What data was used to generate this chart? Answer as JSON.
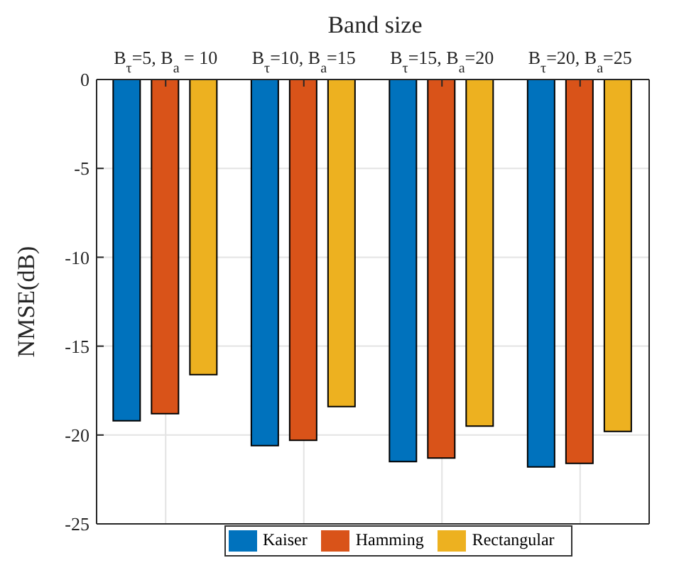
{
  "chart_data": {
    "type": "bar",
    "xlabel": "Band size",
    "ylabel": "NMSE(dB)",
    "categories": [
      "B$_{τ}$=5, B$_{a}$ = 10",
      "B$_{τ}$=10, B$_{a}$=15",
      "B$_{τ}$=15, B$_{a}$=20",
      "B$_{τ}$=20, B$_{a}$=25"
    ],
    "series": [
      {
        "name": "Kaiser",
        "color": "#0072bd",
        "values": [
          -19.2,
          -20.6,
          -21.5,
          -21.8
        ]
      },
      {
        "name": "Hamming",
        "color": "#d95319",
        "values": [
          -18.8,
          -20.3,
          -21.3,
          -21.6
        ]
      },
      {
        "name": "Rectangular",
        "color": "#edb120",
        "values": [
          -16.6,
          -18.4,
          -19.5,
          -19.8
        ]
      }
    ],
    "ylim": [
      -25,
      0
    ],
    "yticks": [
      0,
      -5,
      -10,
      -15,
      -20,
      -25
    ],
    "grid": true,
    "legend": "bottom"
  }
}
